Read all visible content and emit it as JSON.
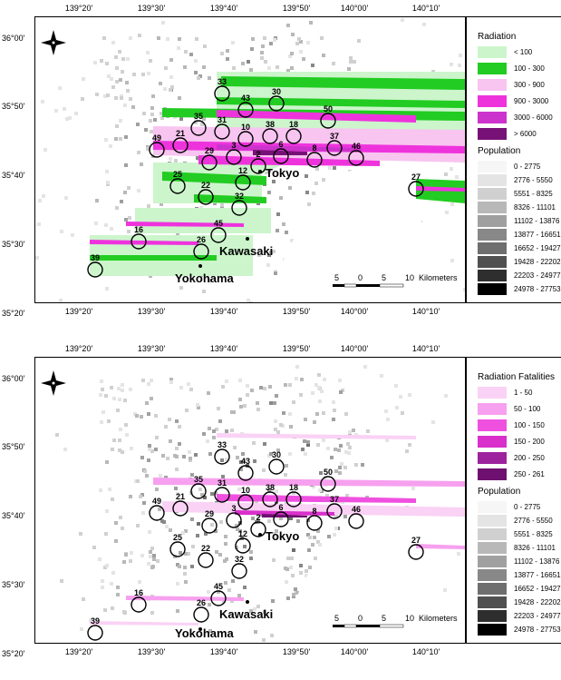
{
  "axis": {
    "x_ticks": [
      "139°20'",
      "139°30'",
      "139°40'",
      "139°50'",
      "140°00'",
      "140°10'"
    ],
    "y_ticks": [
      "36°00'",
      "35°50'",
      "35°40'",
      "35°30'",
      "35°20'"
    ]
  },
  "scale": {
    "labels": [
      "5",
      "0",
      "5",
      "10"
    ],
    "unit": "Kilometers"
  },
  "cities": [
    {
      "id": "tokyo",
      "name": "Tokyo"
    },
    {
      "id": "kawasaki",
      "name": "Kawasaki"
    },
    {
      "id": "yokohama",
      "name": "Yokohama"
    }
  ],
  "sites": [
    "33",
    "30",
    "43",
    "50",
    "35",
    "31",
    "38",
    "18",
    "10",
    "49",
    "21",
    "37",
    "29",
    "3",
    "2",
    "6",
    "8",
    "46",
    "25",
    "12",
    "27",
    "22",
    "32",
    "45",
    "16",
    "26",
    "39"
  ],
  "colors": {
    "rad_lt100": "#ccf5cc",
    "rad_100_300": "#22cc22",
    "rad_300_900": "#f8c4f0",
    "rad_900_3000": "#ee33dd",
    "rad_3000_6000": "#cc33cc",
    "rad_gt6000": "#771177",
    "fat_1_50": "#fad2f5",
    "fat_50_100": "#f7a0ef",
    "fat_100_150": "#f050e0",
    "fat_150_200": "#d930cc",
    "fat_200_250": "#9d229d",
    "fat_250_261": "#6e1070"
  },
  "top": {
    "legend_title": "Radiation",
    "legend_items": [
      "< 100",
      "100 - 300",
      "300 - 900",
      "900 - 3000",
      "3000 - 6000",
      "> 6000"
    ]
  },
  "bottom": {
    "legend_title": "Radiation Fatalities",
    "legend_items": [
      "1 - 50",
      "50 - 100",
      "100 - 150",
      "150 - 200",
      "200 - 250",
      "250 - 261"
    ]
  },
  "population": {
    "title": "Population",
    "items": [
      "0 - 2775",
      "2776 - 5550",
      "5551 - 8325",
      "8326 - 11101",
      "11102 - 13876",
      "13877 - 16651",
      "16652 - 19427",
      "19428 - 22202",
      "22203 - 24977",
      "24978 - 27753"
    ],
    "colors": [
      "#f6f6f6",
      "#e4e4e4",
      "#d0d0d0",
      "#b8b8b8",
      "#a0a0a0",
      "#888888",
      "#6e6e6e",
      "#505050",
      "#2e2e2e",
      "#000000"
    ]
  }
}
